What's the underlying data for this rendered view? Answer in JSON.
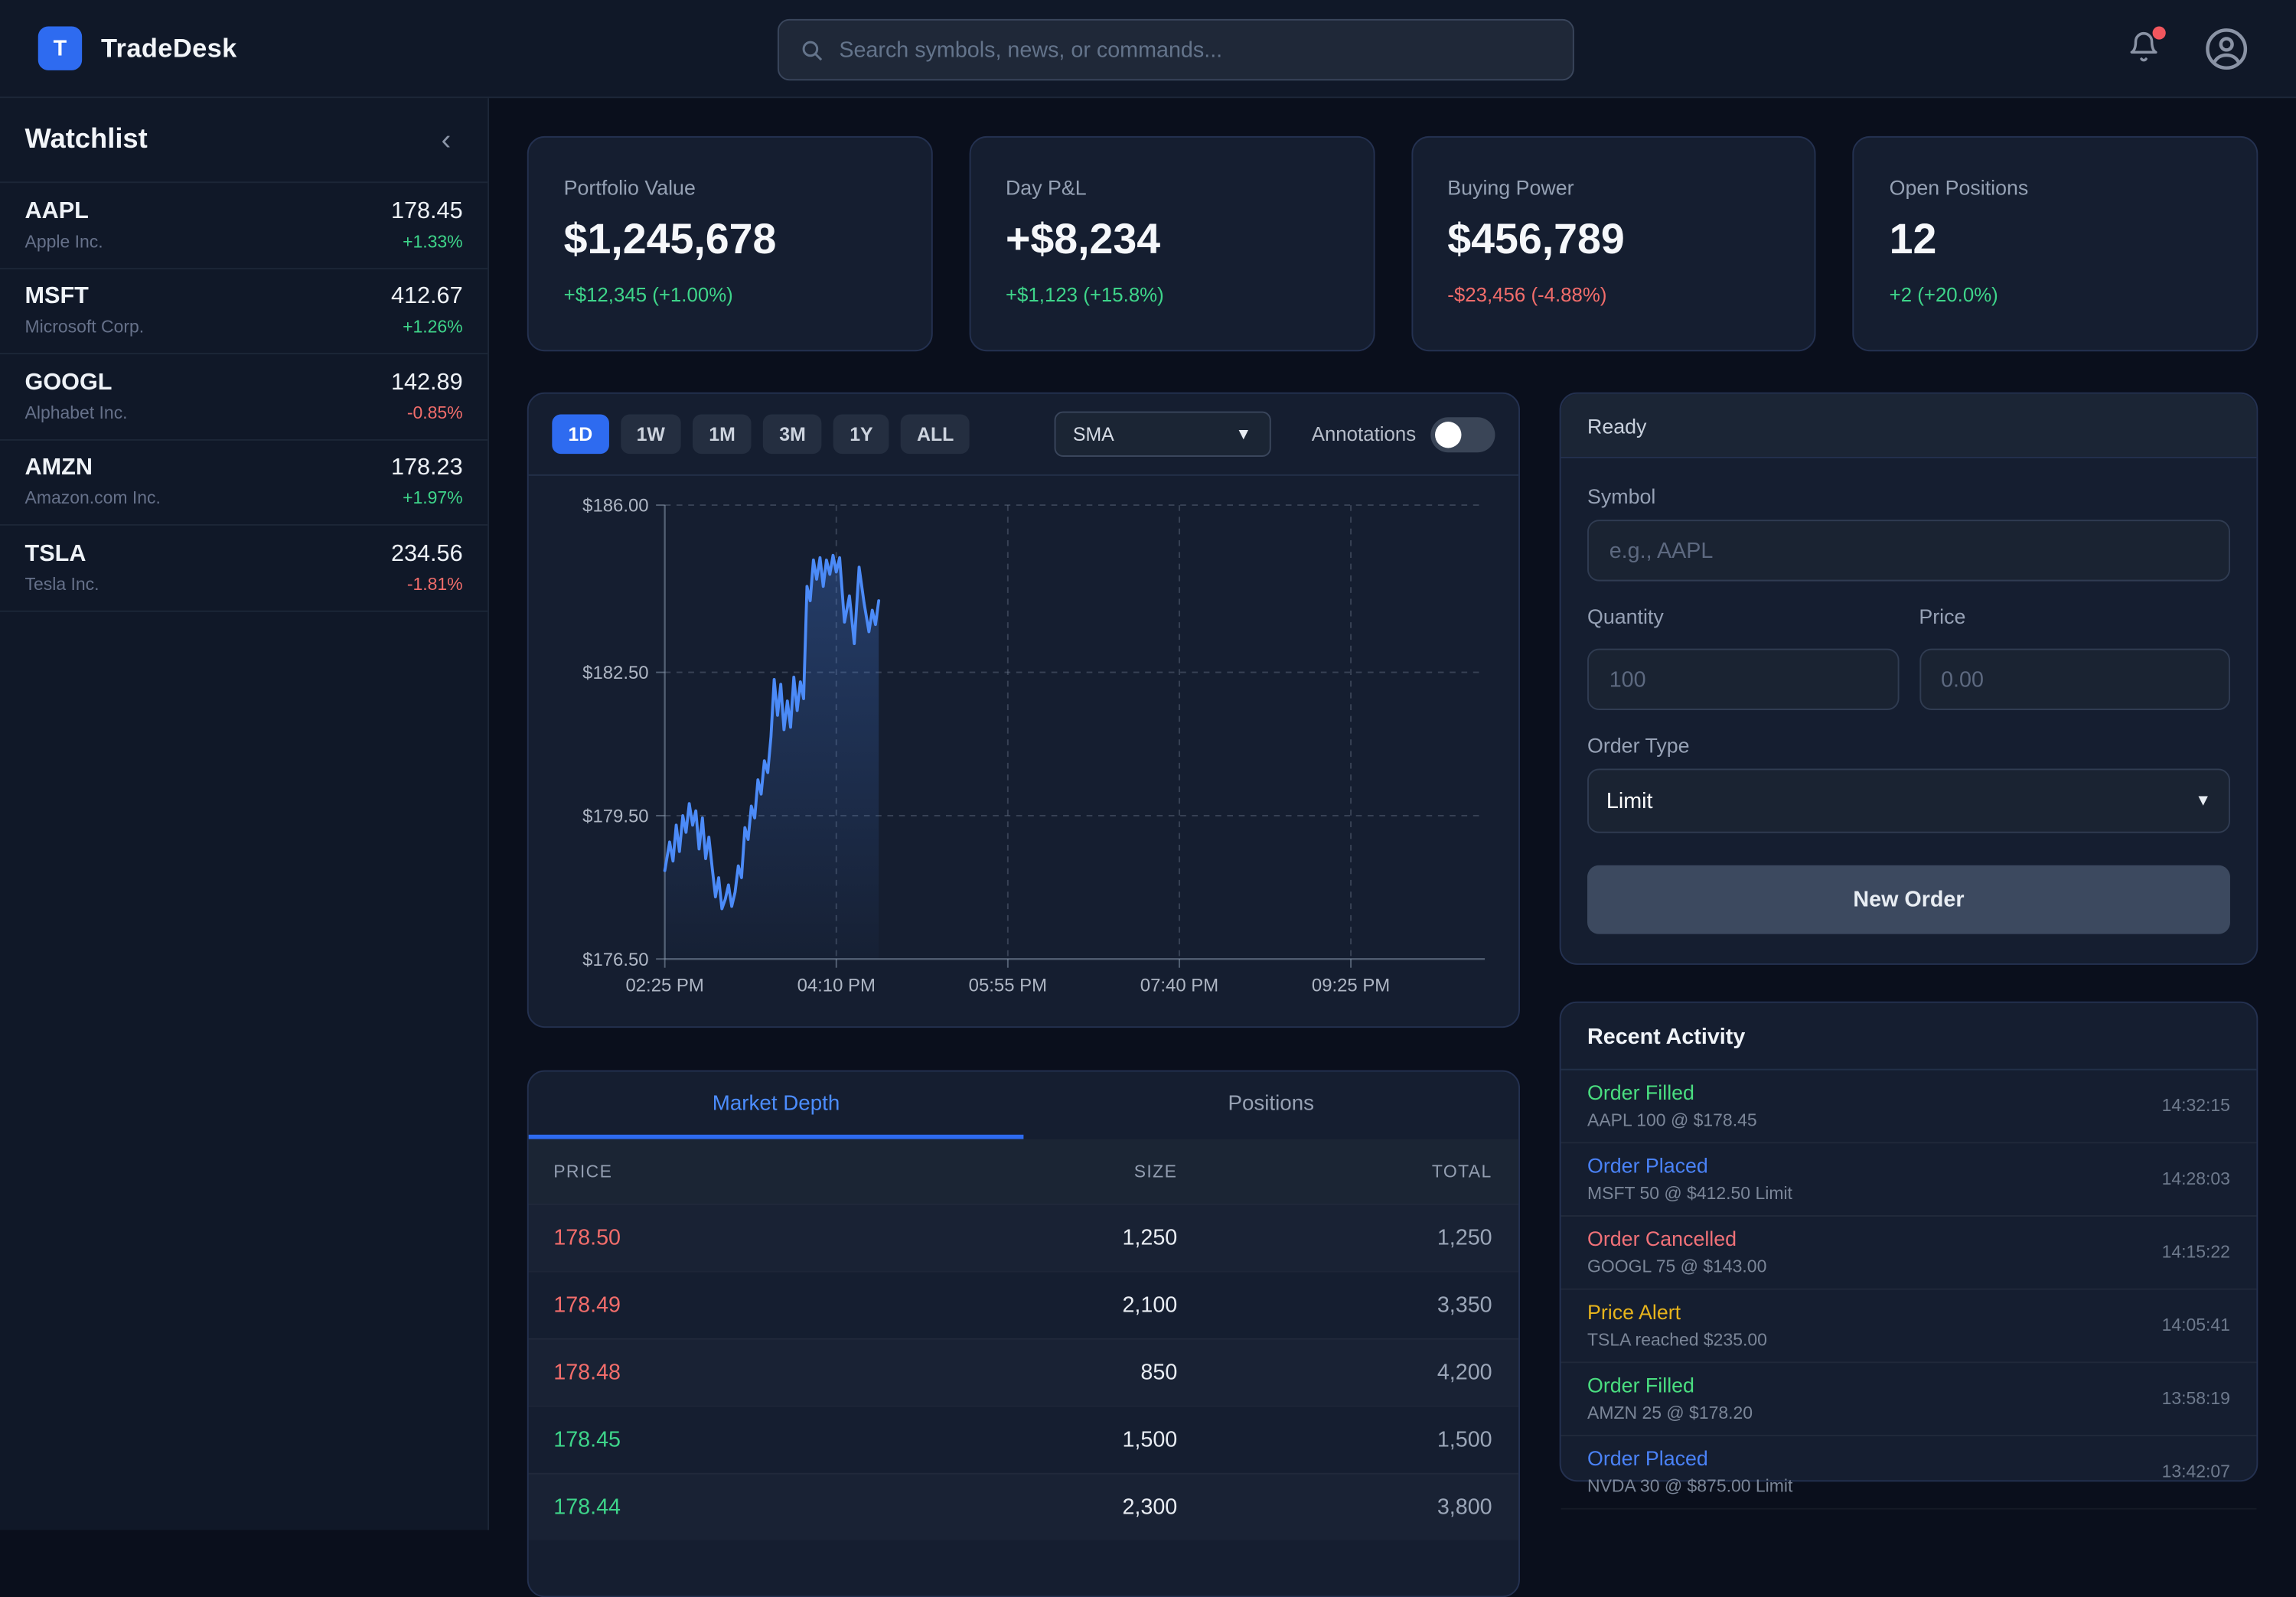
{
  "nav": {
    "logo_letter": "T",
    "brand": "TradeDesk",
    "search_placeholder": "Search symbols, news, or commands..."
  },
  "sidebar": {
    "title": "Watchlist",
    "collapse_icon": "chevron-left",
    "items": [
      {
        "symbol": "AAPL",
        "name": "Apple Inc.",
        "price": "178.45",
        "change": "+1.33%",
        "dir": "up"
      },
      {
        "symbol": "MSFT",
        "name": "Microsoft Corp.",
        "price": "412.67",
        "change": "+1.26%",
        "dir": "up"
      },
      {
        "symbol": "GOOGL",
        "name": "Alphabet Inc.",
        "price": "142.89",
        "change": "-0.85%",
        "dir": "down"
      },
      {
        "symbol": "AMZN",
        "name": "Amazon.com Inc.",
        "price": "178.23",
        "change": "+1.97%",
        "dir": "up"
      },
      {
        "symbol": "TSLA",
        "name": "Tesla Inc.",
        "price": "234.56",
        "change": "-1.81%",
        "dir": "down"
      }
    ]
  },
  "stats": [
    {
      "label": "Portfolio Value",
      "value": "$1,245,678",
      "change": "+$12,345 (+1.00%)",
      "dir": "up"
    },
    {
      "label": "Day P&L",
      "value": "+$8,234",
      "change": "+$1,123 (+15.8%)",
      "dir": "up"
    },
    {
      "label": "Buying Power",
      "value": "$456,789",
      "change": "-$23,456 (-4.88%)",
      "dir": "down"
    },
    {
      "label": "Open Positions",
      "value": "12",
      "change": "+2 (+20.0%)",
      "dir": "up"
    }
  ],
  "chart_toolbar": {
    "timeframes": [
      "1D",
      "1W",
      "1M",
      "3M",
      "1Y",
      "ALL"
    ],
    "active_timeframe": "1D",
    "indicator": "SMA",
    "annotations_label": "Annotations",
    "annotations_on": false
  },
  "chart_data": {
    "type": "line",
    "series_name": "AAPL intraday price",
    "x_unit": "minutes since 02:25 PM",
    "x": [
      0,
      3,
      5,
      7,
      9,
      11,
      13,
      15,
      17,
      19,
      21,
      23,
      25,
      27,
      29,
      31,
      33,
      35,
      37,
      39,
      41,
      43,
      45,
      47,
      49,
      51,
      53,
      55,
      57,
      59,
      61,
      63,
      65,
      67,
      69,
      71,
      73,
      75,
      77,
      79,
      81,
      83,
      85,
      87,
      89,
      91,
      93,
      95,
      97,
      99,
      101,
      103,
      105,
      107,
      110,
      113,
      116,
      119,
      122,
      125,
      127,
      129,
      131
    ],
    "y": [
      178.35,
      178.95,
      178.55,
      179.3,
      178.75,
      179.5,
      179.15,
      179.75,
      179.3,
      179.6,
      178.8,
      179.45,
      178.6,
      179.05,
      178.4,
      177.8,
      178.2,
      177.55,
      177.75,
      178.05,
      177.6,
      177.9,
      178.45,
      178.2,
      179.25,
      179.0,
      179.7,
      179.45,
      180.25,
      179.95,
      180.65,
      180.4,
      181.15,
      182.35,
      181.6,
      182.25,
      181.3,
      181.9,
      181.35,
      182.4,
      181.7,
      182.3,
      181.95,
      184.3,
      184.0,
      184.85,
      184.45,
      184.9,
      184.3,
      184.85,
      184.55,
      184.95,
      184.6,
      184.9,
      183.55,
      184.1,
      183.1,
      184.7,
      183.95,
      183.35,
      183.8,
      183.5,
      184.0
    ],
    "xlim": [
      0,
      502
    ],
    "ylim": [
      176.5,
      186.0
    ],
    "x_tick_values": [
      0,
      105,
      210,
      315,
      420
    ],
    "x_tick_labels": [
      "02:25 PM",
      "04:10 PM",
      "05:55 PM",
      "07:40 PM",
      "09:25 PM"
    ],
    "y_tick_values": [
      186.0,
      182.5,
      179.5,
      176.5
    ],
    "y_tick_labels": [
      "$186.00",
      "$182.50",
      "$179.50",
      "$176.50"
    ],
    "grid": "dashed",
    "line_color": "#4c8bf8",
    "area_fill": true
  },
  "depth": {
    "tabs": [
      "Market Depth",
      "Positions"
    ],
    "active_tab": "Market Depth",
    "columns": [
      "PRICE",
      "SIZE",
      "TOTAL"
    ],
    "rows": [
      {
        "price": "178.50",
        "size": "1,250",
        "total": "1,250",
        "side": "ask"
      },
      {
        "price": "178.49",
        "size": "2,100",
        "total": "3,350",
        "side": "ask"
      },
      {
        "price": "178.48",
        "size": "850",
        "total": "4,200",
        "side": "ask"
      },
      {
        "price": "178.45",
        "size": "1,500",
        "total": "1,500",
        "side": "bid"
      },
      {
        "price": "178.44",
        "size": "2,300",
        "total": "3,800",
        "side": "bid"
      }
    ]
  },
  "order": {
    "status": "Ready",
    "symbol_label": "Symbol",
    "symbol_placeholder": "e.g., AAPL",
    "quantity_label": "Quantity",
    "quantity_placeholder": "100",
    "price_label": "Price",
    "price_placeholder": "0.00",
    "type_label": "Order Type",
    "type_value": "Limit",
    "submit_label": "New Order"
  },
  "activity": {
    "title": "Recent Activity",
    "items": [
      {
        "type": "filled",
        "status": "Order Filled",
        "detail": "AAPL 100 @ $178.45",
        "time": "14:32:15"
      },
      {
        "type": "placed",
        "status": "Order Placed",
        "detail": "MSFT 50 @ $412.50 Limit",
        "time": "14:28:03"
      },
      {
        "type": "cancelled",
        "status": "Order Cancelled",
        "detail": "GOOGL 75 @ $143.00",
        "time": "14:15:22"
      },
      {
        "type": "alert",
        "status": "Price Alert",
        "detail": "TSLA reached $235.00",
        "time": "14:05:41"
      },
      {
        "type": "filled",
        "status": "Order Filled",
        "detail": "AMZN 25 @ $178.20",
        "time": "13:58:19"
      },
      {
        "type": "placed",
        "status": "Order Placed",
        "detail": "NVDA 30 @ $875.00 Limit",
        "time": "13:42:07"
      }
    ]
  },
  "colors": {
    "accent_blue": "#2e6bf0",
    "link_blue": "#4c8dff",
    "green": "#3ed58a",
    "red": "#f26d6b",
    "yellow": "#e7b41c",
    "chart_line": "#4c8bf8",
    "page_bg": "#0a0f1c",
    "panel_bg": "#151e30"
  }
}
